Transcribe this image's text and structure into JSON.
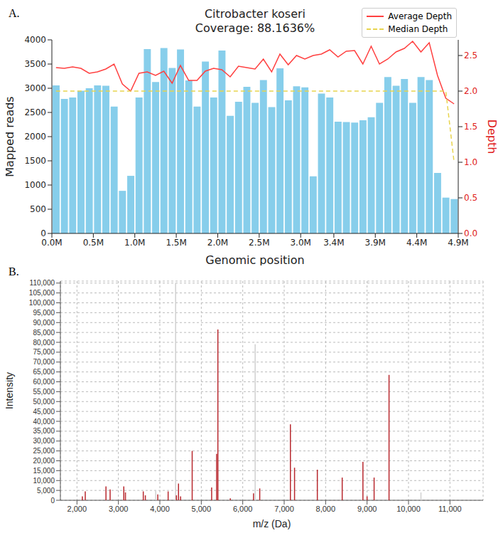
{
  "chart_data": [
    {
      "type": "bar",
      "panel": "A.",
      "title": "Citrobacter koseri",
      "subtitle": "Coverage: 88.1636%",
      "x_label": "Genomic position",
      "y_label": "Mapped reads",
      "y2_label": "Depth",
      "x": [
        0.05,
        0.15,
        0.25,
        0.35,
        0.45,
        0.55,
        0.65,
        0.75,
        0.85,
        0.95,
        1.05,
        1.15,
        1.25,
        1.35,
        1.45,
        1.55,
        1.65,
        1.75,
        1.85,
        1.95,
        2.05,
        2.15,
        2.25,
        2.35,
        2.45,
        2.55,
        2.65,
        2.75,
        2.85,
        2.95,
        3.05,
        3.15,
        3.25,
        3.35,
        3.45,
        3.55,
        3.65,
        3.75,
        3.85,
        3.95,
        4.05,
        4.15,
        4.25,
        4.35,
        4.45,
        4.55,
        4.65,
        4.75,
        4.85
      ],
      "xlim": [
        0,
        4.9
      ],
      "xticks": [
        {
          "value": 0,
          "label": "0.0M"
        },
        {
          "value": 0.5,
          "label": "0.5M"
        },
        {
          "value": 1,
          "label": "1.0M"
        },
        {
          "value": 1.5,
          "label": "1.5M"
        },
        {
          "value": 2,
          "label": "2.0M"
        },
        {
          "value": 2.5,
          "label": "2.5M"
        },
        {
          "value": 3,
          "label": "3.0M"
        },
        {
          "value": 3.4,
          "label": "3.4M"
        },
        {
          "value": 3.9,
          "label": "3.9M"
        },
        {
          "value": 4.4,
          "label": "4.4M"
        },
        {
          "value": 4.9,
          "label": "4.9M"
        }
      ],
      "ylim": [
        0,
        4000
      ],
      "yticks": [
        0,
        500,
        1000,
        1500,
        2000,
        2500,
        3000,
        3500,
        4000
      ],
      "y2lim": [
        0,
        2.72
      ],
      "y2ticks": [
        {
          "value": 0,
          "label": "0.0"
        },
        0.5,
        {
          "value": 1,
          "label": "1.0"
        },
        1.5,
        {
          "value": 2,
          "label": "2.0"
        },
        2.5
      ],
      "grid": false,
      "legend": "upper right",
      "series": [
        {
          "type": "bar",
          "color": "#87ceeb",
          "values": [
            3060,
            2780,
            2810,
            2950,
            3000,
            3060,
            3050,
            2620,
            880,
            1190,
            2810,
            3810,
            3130,
            3830,
            3420,
            3800,
            3160,
            2620,
            3550,
            2810,
            3780,
            2430,
            2720,
            3030,
            2700,
            3170,
            2610,
            3410,
            2750,
            3040,
            3020,
            1180,
            2890,
            2810,
            2310,
            2300,
            2290,
            2340,
            2400,
            2700,
            3230,
            3050,
            3190,
            2700,
            3230,
            3170,
            1250,
            740,
            710
          ]
        },
        {
          "name": "Average Depth",
          "type": "line",
          "axis": "y2",
          "color": "#ff4040",
          "line_style": "solid",
          "values": [
            2.33,
            2.32,
            2.34,
            2.32,
            2.25,
            2.27,
            2.31,
            2.38,
            2.1,
            2.0,
            2.25,
            2.27,
            2.22,
            2.28,
            2.11,
            2.36,
            2.15,
            2.15,
            2.28,
            2.32,
            2.3,
            2.2,
            2.35,
            2.33,
            2.31,
            2.45,
            2.27,
            2.52,
            2.37,
            2.5,
            2.45,
            2.5,
            2.52,
            2.58,
            2.48,
            2.56,
            2.57,
            2.38,
            2.63,
            2.38,
            2.45,
            2.55,
            2.6,
            2.7,
            2.55,
            2.68,
            2.22,
            1.9,
            1.82
          ]
        },
        {
          "name": "Median Depth",
          "type": "line",
          "axis": "y2",
          "color": "#e8d44d",
          "line_style": "dashed",
          "values": [
            2,
            2,
            2,
            2,
            2,
            2,
            2,
            2,
            2,
            2,
            2,
            2,
            2,
            2,
            2,
            2,
            2,
            2,
            2,
            2,
            2,
            2,
            2,
            2,
            2,
            2,
            2,
            2,
            2,
            2,
            2,
            2,
            2,
            2,
            2,
            2,
            2,
            2,
            2,
            2,
            2,
            2,
            2,
            2,
            2,
            2,
            2,
            2,
            1
          ]
        }
      ]
    },
    {
      "type": "bar",
      "panel": "B.",
      "x_label": "m/z (Da)",
      "y_label": "Intensity",
      "xlim": [
        1600,
        11800
      ],
      "xticks": [
        {
          "value": 2000,
          "label": "2,000"
        },
        {
          "value": 3000,
          "label": "3,000"
        },
        {
          "value": 4000,
          "label": "4,000"
        },
        {
          "value": 5000,
          "label": "5,000"
        },
        {
          "value": 6000,
          "label": "6,000"
        },
        {
          "value": 7000,
          "label": "7,000"
        },
        {
          "value": 8000,
          "label": "8,000"
        },
        {
          "value": 9000,
          "label": "9,000"
        },
        {
          "value": 10000,
          "label": "10,000"
        },
        {
          "value": 11000,
          "label": "11,000"
        }
      ],
      "ylim": [
        0,
        111000
      ],
      "yticks": [
        0,
        {
          "value": 5000,
          "label": "5,000"
        },
        {
          "value": 10000,
          "label": "10,000"
        },
        {
          "value": 15000,
          "label": "15,000"
        },
        {
          "value": 20000,
          "label": "20,000"
        },
        {
          "value": 25000,
          "label": "25,000"
        },
        {
          "value": 30000,
          "label": "30,000"
        },
        {
          "value": 35000,
          "label": "35,000"
        },
        {
          "value": 40000,
          "label": "40,000"
        },
        {
          "value": 45000,
          "label": "45,000"
        },
        {
          "value": 50000,
          "label": "50,000"
        },
        {
          "value": 55000,
          "label": "55,000"
        },
        {
          "value": 60000,
          "label": "60,000"
        },
        {
          "value": 65000,
          "label": "65,000"
        },
        {
          "value": 70000,
          "label": "70,000"
        },
        {
          "value": 75000,
          "label": "75,000"
        },
        {
          "value": 80000,
          "label": "80,000"
        },
        {
          "value": 85000,
          "label": "85,000"
        },
        {
          "value": 90000,
          "label": "90,000"
        },
        {
          "value": 95000,
          "label": "95,000"
        },
        {
          "value": 100000,
          "label": "100,000"
        },
        {
          "value": 105000,
          "label": "105,000"
        },
        {
          "value": 110000,
          "label": "110,000"
        }
      ],
      "grid": true,
      "series": [
        {
          "color": "#d0d0d0",
          "x": [
            3900,
            4380,
            6300,
            10300
          ],
          "values": [
            5000,
            110000,
            79000,
            4000
          ]
        },
        {
          "color": "#b8282e",
          "x": [
            2130,
            2200,
            2700,
            2800,
            3130,
            3170,
            3600,
            3650,
            3950,
            4200,
            4400,
            4450,
            4500,
            4780,
            5250,
            5370,
            5400,
            5700,
            6260,
            6410,
            7150,
            7250,
            7800,
            8400,
            8900,
            9000,
            9170,
            9530
          ],
          "values": [
            2000,
            4500,
            7000,
            5500,
            7000,
            4000,
            4500,
            2500,
            3000,
            4500,
            2500,
            8500,
            2000,
            25000,
            6500,
            23500,
            86500,
            1000,
            3500,
            6000,
            38500,
            16500,
            15500,
            11500,
            19500,
            2000,
            11500,
            63500
          ]
        }
      ]
    }
  ]
}
